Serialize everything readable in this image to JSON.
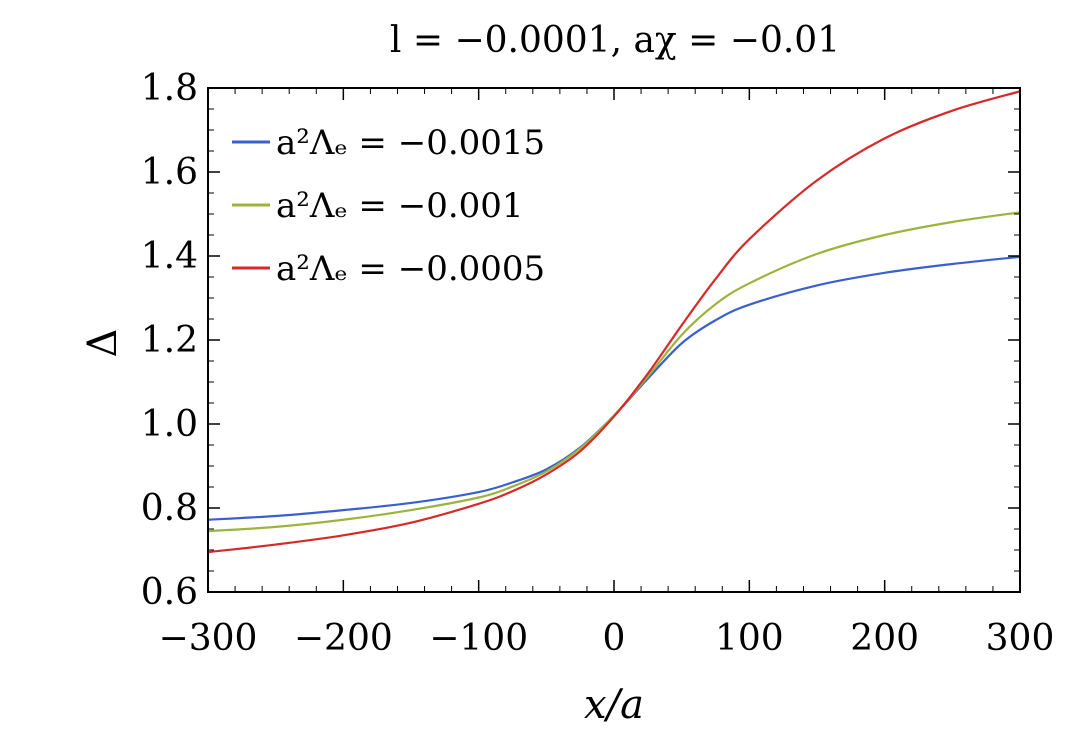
{
  "chart_data": {
    "type": "line",
    "title": "l = −0.0001, aχ = −0.01",
    "xlabel": "x/a",
    "ylabel": "Δ",
    "xlim": [
      -300,
      300
    ],
    "ylim": [
      0.6,
      1.8
    ],
    "x_ticks": [
      -300,
      -200,
      -100,
      0,
      100,
      200,
      300
    ],
    "x_tick_labels": [
      "−300",
      "−200",
      "−100",
      "0",
      "100",
      "200",
      "300"
    ],
    "y_ticks": [
      0.6,
      0.8,
      1.0,
      1.2,
      1.4,
      1.6,
      1.8
    ],
    "y_tick_labels": [
      "0.6",
      "0.8",
      "1.0",
      "1.2",
      "1.4",
      "1.6",
      "1.8"
    ],
    "grid": false,
    "legend_position": "top-left",
    "series": [
      {
        "name": "a²Λₑ = −0.0015",
        "color": "#3b5fcf",
        "x": [
          -300,
          -250,
          -200,
          -150,
          -100,
          -75,
          -50,
          -25,
          0,
          25,
          50,
          75,
          100,
          150,
          200,
          250,
          300
        ],
        "y": [
          0.772,
          0.781,
          0.795,
          0.812,
          0.838,
          0.861,
          0.892,
          0.944,
          1.02,
          1.108,
          1.192,
          1.247,
          1.284,
          1.33,
          1.36,
          1.381,
          1.398
        ]
      },
      {
        "name": "a²Λₑ = −0.001",
        "color": "#9cb43c",
        "x": [
          -300,
          -250,
          -200,
          -150,
          -100,
          -75,
          -50,
          -25,
          0,
          25,
          50,
          75,
          100,
          150,
          200,
          250,
          300
        ],
        "y": [
          0.745,
          0.755,
          0.772,
          0.795,
          0.825,
          0.851,
          0.887,
          0.942,
          1.02,
          1.113,
          1.212,
          1.285,
          1.335,
          1.405,
          1.45,
          1.481,
          1.504
        ]
      },
      {
        "name": "a²Λₑ = −0.0005",
        "color": "#d62a2a",
        "x": [
          -300,
          -250,
          -200,
          -150,
          -100,
          -75,
          -50,
          -25,
          0,
          25,
          50,
          75,
          100,
          150,
          200,
          250,
          300
        ],
        "y": [
          0.695,
          0.713,
          0.735,
          0.765,
          0.81,
          0.84,
          0.88,
          0.935,
          1.018,
          1.12,
          1.235,
          1.345,
          1.44,
          1.58,
          1.68,
          1.746,
          1.792
        ]
      }
    ]
  }
}
